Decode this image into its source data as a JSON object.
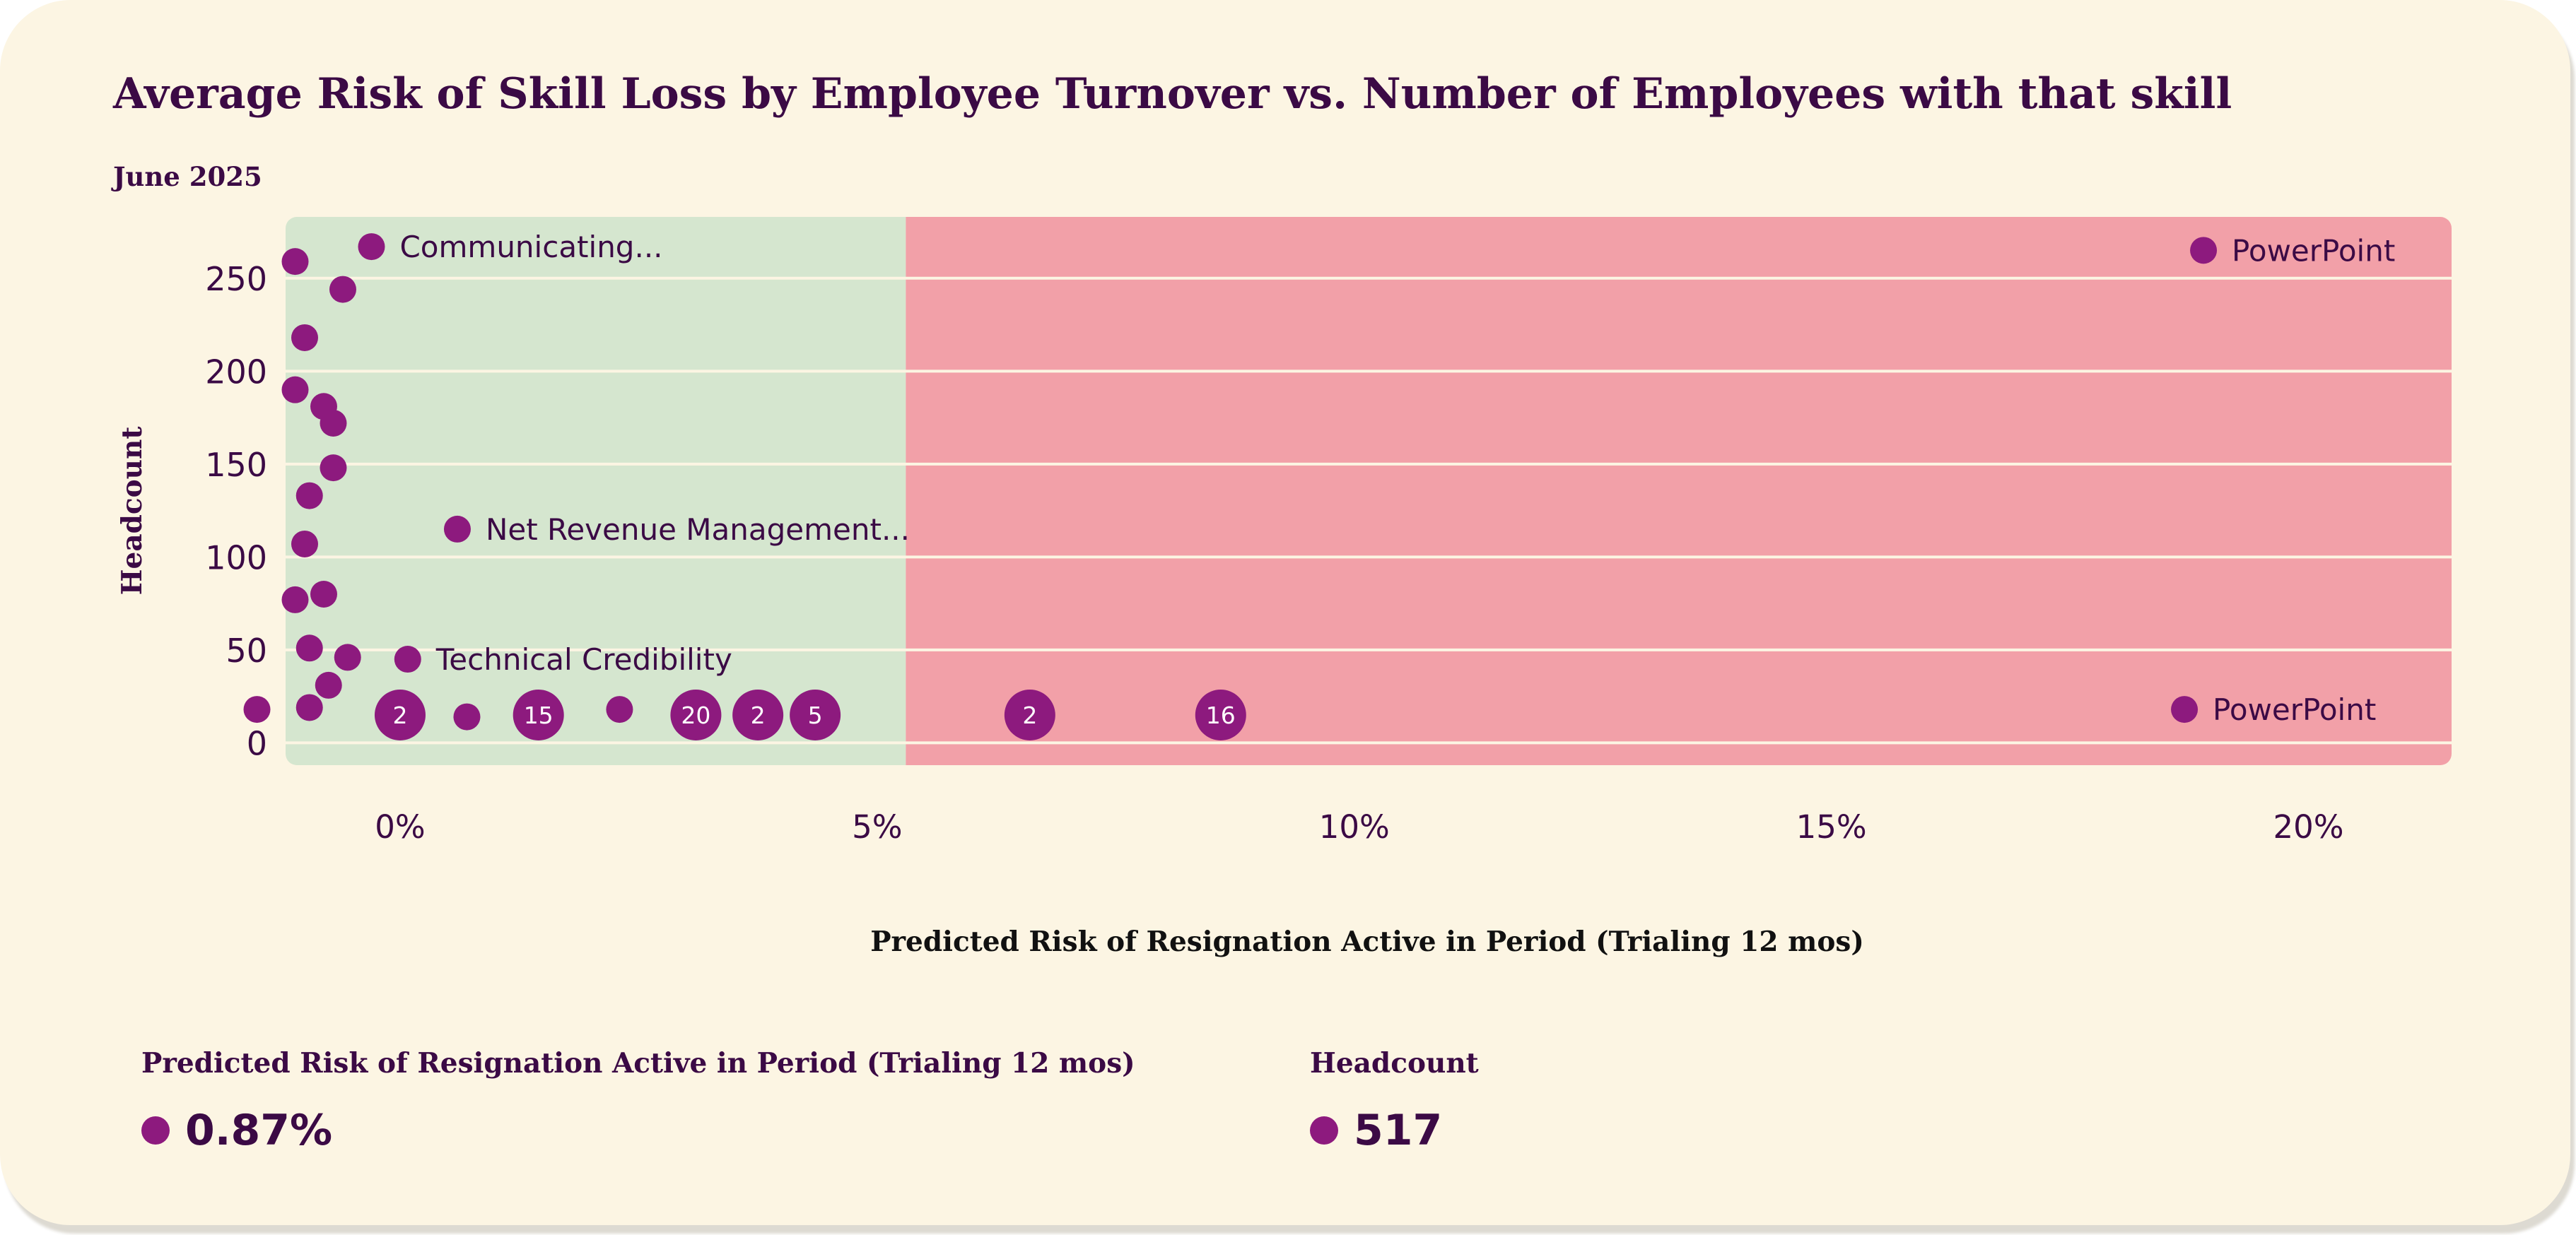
{
  "header": {
    "title": "Average Risk of Skill Loss by Employee Turnover vs. Number of Employees with that skill",
    "subtitle": "June 2025"
  },
  "colors": {
    "background": "#fcf5e3",
    "low_risk_zone": "#d5e6cf",
    "high_risk_zone": "#f2a0a8",
    "marker": "#8d1a7e",
    "text": "#3b0a45"
  },
  "chart_data": {
    "type": "scatter",
    "title": "Average Risk of Skill Loss by Employee Turnover vs. Number of Employees with that skill",
    "subtitle": "June 2025",
    "xlabel": "Predicted Risk of Resignation Active in Period (Trialing 12 mos)",
    "ylabel": "Headcount",
    "x_unit": "%",
    "xlim": [
      -1.2,
      21.5
    ],
    "ylim": [
      -12,
      283
    ],
    "x_ticks": [
      0,
      5,
      10,
      15,
      20
    ],
    "x_tick_labels": [
      "0%",
      "5%",
      "10%",
      "15%",
      "20%"
    ],
    "y_ticks": [
      0,
      50,
      100,
      150,
      200,
      250
    ],
    "y_tick_labels": [
      "0",
      "50",
      "100",
      "150",
      "200",
      "250"
    ],
    "grid": "horizontal",
    "zones": [
      {
        "name": "low",
        "x_from": -1.2,
        "x_to": 5.3,
        "color": "#d5e6cf"
      },
      {
        "name": "high",
        "x_from": 5.3,
        "x_to": 21.5,
        "color": "#f2a0a8"
      }
    ],
    "points": [
      {
        "x": -0.3,
        "y": 267,
        "label": "Communicating..."
      },
      {
        "x": -1.1,
        "y": 259
      },
      {
        "x": -0.6,
        "y": 244
      },
      {
        "x": -1.0,
        "y": 218
      },
      {
        "x": -1.1,
        "y": 190
      },
      {
        "x": -0.8,
        "y": 181
      },
      {
        "x": -0.7,
        "y": 172
      },
      {
        "x": -0.7,
        "y": 148
      },
      {
        "x": -0.95,
        "y": 133
      },
      {
        "x": 0.6,
        "y": 115,
        "label": "Net Revenue Management..."
      },
      {
        "x": -1.0,
        "y": 107
      },
      {
        "x": -0.8,
        "y": 80
      },
      {
        "x": -1.1,
        "y": 77
      },
      {
        "x": -0.95,
        "y": 51
      },
      {
        "x": -0.55,
        "y": 46
      },
      {
        "x": 0.08,
        "y": 45,
        "label": "Technical Credibility"
      },
      {
        "x": -0.75,
        "y": 31
      },
      {
        "x": -0.95,
        "y": 19
      },
      {
        "x": -1.5,
        "y": 18
      },
      {
        "x": 0.7,
        "y": 14
      },
      {
        "x": 2.3,
        "y": 18
      },
      {
        "x": 18.9,
        "y": 265,
        "label": "PowerPoint"
      },
      {
        "x": 18.7,
        "y": 18,
        "label": "PowerPoint"
      }
    ],
    "clusters": [
      {
        "x": 0.0,
        "y": 15,
        "count": 2
      },
      {
        "x": 1.45,
        "y": 15,
        "count": 15
      },
      {
        "x": 3.1,
        "y": 15,
        "count": 20
      },
      {
        "x": 3.75,
        "y": 15,
        "count": 2
      },
      {
        "x": 4.35,
        "y": 15,
        "count": 5
      },
      {
        "x": 6.6,
        "y": 15,
        "count": 2
      },
      {
        "x": 8.6,
        "y": 15,
        "count": 16
      }
    ]
  },
  "legend": {
    "risk": {
      "title": "Predicted Risk of Resignation Active in Period (Trialing 12 mos)",
      "value": "0.87%"
    },
    "headcount": {
      "title": "Headcount",
      "value": "517"
    }
  }
}
